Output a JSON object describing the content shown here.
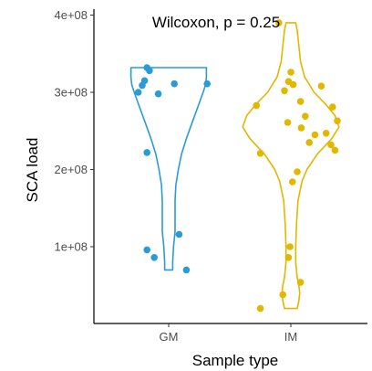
{
  "chart_data": {
    "type": "scatter",
    "subtype": "violin-jitter",
    "annotation": "Wilcoxon, p = 0.25",
    "xlabel": "Sample type",
    "ylabel": "SCA load",
    "categories": [
      "GM",
      "IM"
    ],
    "ylim": [
      0,
      400000000
    ],
    "yticks": [
      100000000,
      200000000,
      300000000,
      400000000
    ],
    "ytick_labels": [
      "1e+08",
      "2e+08",
      "3e+08",
      "4e+08"
    ],
    "grid": false,
    "legend": "none",
    "colors": {
      "GM": "#2b9bd6",
      "IM": "#e2b700"
    },
    "series": [
      {
        "category": "GM",
        "points": [
          [
            -0.38,
            300000000
          ],
          [
            -0.33,
            309000000
          ],
          [
            -0.3,
            315000000
          ],
          [
            -0.27,
            332000000
          ],
          [
            -0.24,
            328000000
          ],
          [
            -0.27,
            222000000
          ],
          [
            -0.13,
            298000000
          ],
          [
            -0.27,
            96000000
          ],
          [
            -0.18,
            86000000
          ],
          [
            0.07,
            311000000
          ],
          [
            0.13,
            116000000
          ],
          [
            0.22,
            70000000
          ],
          [
            0.48,
            311000000
          ]
        ]
      },
      {
        "category": "IM",
        "points": [
          [
            -0.15,
            390000000
          ],
          [
            -0.43,
            283000000
          ],
          [
            -0.38,
            221000000
          ],
          [
            -0.08,
            302000000
          ],
          [
            -0.03,
            314000000
          ],
          [
            0.0,
            326000000
          ],
          [
            0.03,
            310000000
          ],
          [
            0.12,
            288000000
          ],
          [
            0.18,
            269000000
          ],
          [
            0.23,
            235000000
          ],
          [
            0.3,
            245000000
          ],
          [
            -0.04,
            261000000
          ],
          [
            0.13,
            254000000
          ],
          [
            0.38,
            308000000
          ],
          [
            0.44,
            247000000
          ],
          [
            0.52,
            281000000
          ],
          [
            0.5,
            232000000
          ],
          [
            0.58,
            263000000
          ],
          [
            0.55,
            225000000
          ],
          [
            0.08,
            197000000
          ],
          [
            0.02,
            184000000
          ],
          [
            -0.01,
            100000000
          ],
          [
            -0.03,
            86000000
          ],
          [
            0.12,
            54000000
          ],
          [
            -0.1,
            38000000
          ],
          [
            -0.38,
            20000000
          ]
        ]
      }
    ],
    "violins": [
      {
        "category": "GM",
        "profile": [
          [
            70000000,
            0.05
          ],
          [
            80000000,
            0.05
          ],
          [
            100000000,
            0.06
          ],
          [
            110000000,
            0.07
          ],
          [
            120000000,
            0.08
          ],
          [
            140000000,
            0.08
          ],
          [
            160000000,
            0.08
          ],
          [
            180000000,
            0.09
          ],
          [
            200000000,
            0.12
          ],
          [
            220000000,
            0.16
          ],
          [
            240000000,
            0.22
          ],
          [
            260000000,
            0.29
          ],
          [
            280000000,
            0.36
          ],
          [
            300000000,
            0.43
          ],
          [
            310000000,
            0.46
          ],
          [
            320000000,
            0.47
          ],
          [
            330000000,
            0.47
          ],
          [
            332000000,
            0.47
          ]
        ]
      },
      {
        "category": "IM",
        "profile": [
          [
            20000000,
            0.08
          ],
          [
            30000000,
            0.1
          ],
          [
            40000000,
            0.11
          ],
          [
            50000000,
            0.1
          ],
          [
            60000000,
            0.08
          ],
          [
            80000000,
            0.06
          ],
          [
            100000000,
            0.06
          ],
          [
            130000000,
            0.07
          ],
          [
            160000000,
            0.09
          ],
          [
            185000000,
            0.14
          ],
          [
            200000000,
            0.2
          ],
          [
            220000000,
            0.33
          ],
          [
            240000000,
            0.51
          ],
          [
            255000000,
            0.6
          ],
          [
            270000000,
            0.55
          ],
          [
            285000000,
            0.43
          ],
          [
            300000000,
            0.29
          ],
          [
            320000000,
            0.17
          ],
          [
            340000000,
            0.12
          ],
          [
            360000000,
            0.1
          ],
          [
            380000000,
            0.08
          ],
          [
            390000000,
            0.06
          ]
        ]
      }
    ]
  }
}
